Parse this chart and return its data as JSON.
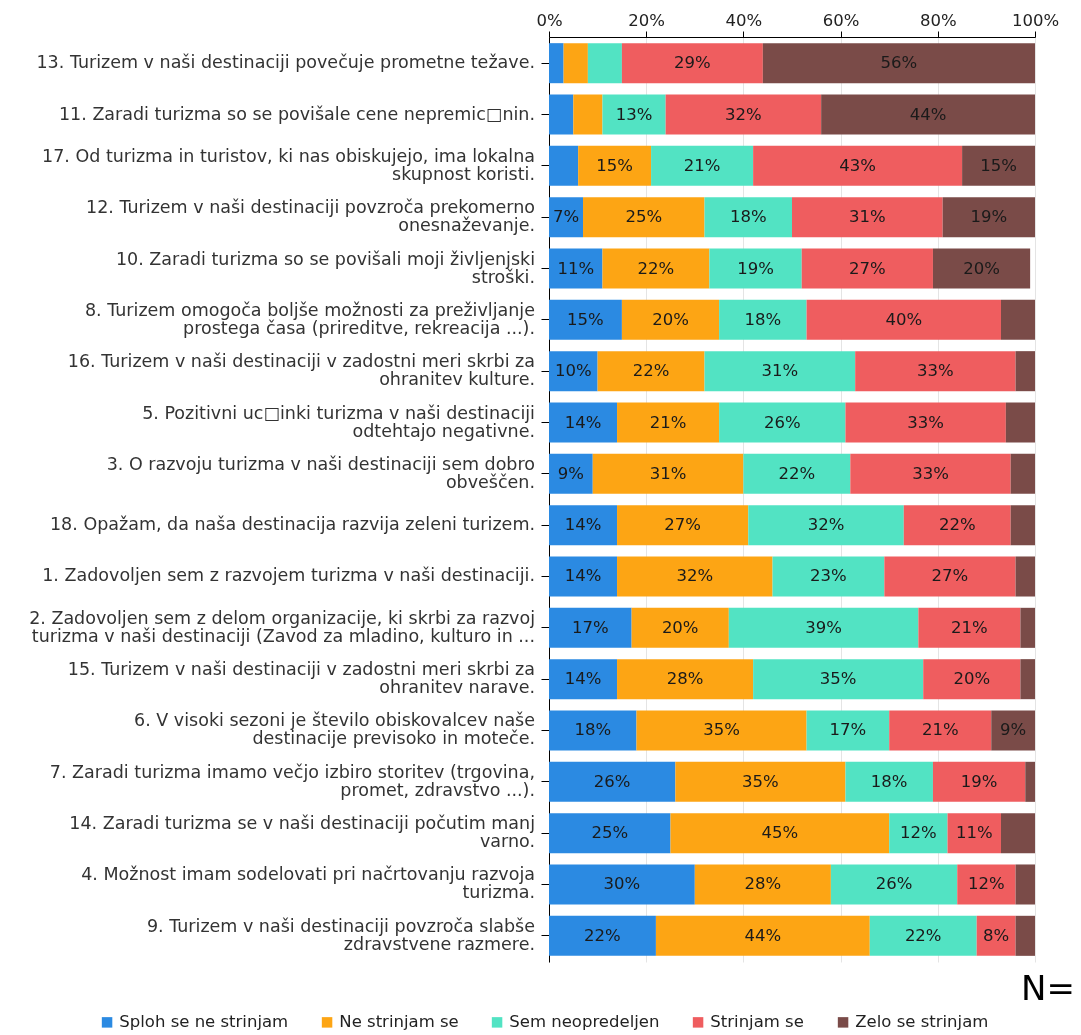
{
  "chart_data": {
    "type": "bar",
    "orientation": "horizontal",
    "stacked": true,
    "categories": [
      "13. Turizem v naši destinaciji povečuje prometne težave.",
      "11. Zaradi turizma so se povišale cene nepremic□nin.",
      "17. Od turizma in turistov, ki nas obiskujejo, ima lokalna\nskupnost koristi.",
      "12. Turizem v naši destinaciji povzroča prekomerno\nonesnaževanje.",
      "10. Zaradi turizma so se povišali moji življenjski\nstroški.",
      "8. Turizem omogoča boljše možnosti za preživljanje\nprostega časa (prireditve, rekreacija ...).",
      "16. Turizem v naši destinaciji v zadostni meri skrbi za\nohranitev kulture.",
      "5. Pozitivni uc□inki turizma v naši destinaciji\nodtehtajo negativne.",
      "3. O razvoju turizma v naši destinaciji sem dobro\nobveščen.",
      "18. Opažam, da naša destinacija razvija zeleni turizem.",
      "1. Zadovoljen sem z razvojem turizma v naši destinaciji.",
      "2. Zadovoljen sem z delom organizacije, ki skrbi za razvoj\nturizma v naši destinaciji (Zavod za mladino, kulturo in ...",
      "15. Turizem v naši destinaciji v zadostni meri skrbi za\nohranitev narave.",
      "6. V visoki sezoni je število obiskovalcev naše\ndestinacije previsoko in moteče.",
      "7. Zaradi turizma imamo večjo izbiro storitev (trgovina,\npromet, zdravstvo ...).",
      "14. Zaradi turizma se v naši destinaciji počutim manj\nvarno.",
      "4. Možnost imam sodelovati pri načrtovanju razvoja\nturizma.",
      "9. Turizem v naši destinaciji povzroča slabše\nzdravstvene razmere."
    ],
    "series": [
      {
        "name": "Sploh se ne strinjam",
        "color": "#2b8ae2",
        "values": [
          3,
          5,
          6,
          7,
          11,
          15,
          10,
          14,
          9,
          14,
          14,
          17,
          14,
          18,
          26,
          25,
          30,
          22
        ],
        "value_labels": [
          null,
          null,
          null,
          "7%",
          "11%",
          "15%",
          "10%",
          "14%",
          "9%",
          "14%",
          "14%",
          "17%",
          "14%",
          "18%",
          "26%",
          "25%",
          "30%",
          "22%"
        ]
      },
      {
        "name": "Ne strinjam se",
        "color": "#fda514",
        "values": [
          5,
          6,
          15,
          25,
          22,
          20,
          22,
          21,
          31,
          27,
          32,
          20,
          28,
          35,
          35,
          45,
          28,
          44
        ],
        "value_labels": [
          null,
          null,
          "15%",
          "25%",
          "22%",
          "20%",
          "22%",
          "21%",
          "31%",
          "27%",
          "32%",
          "20%",
          "28%",
          "35%",
          "35%",
          "45%",
          "28%",
          "44%"
        ]
      },
      {
        "name": "Sem neopredeljen",
        "color": "#52e3c3",
        "values": [
          7,
          13,
          21,
          18,
          19,
          18,
          31,
          26,
          22,
          32,
          23,
          39,
          35,
          17,
          18,
          12,
          26,
          22
        ],
        "value_labels": [
          null,
          "13%",
          "21%",
          "18%",
          "19%",
          "18%",
          "31%",
          "26%",
          "22%",
          "32%",
          "23%",
          "39%",
          "35%",
          "17%",
          "18%",
          "12%",
          "26%",
          "22%"
        ]
      },
      {
        "name": "Strinjam se",
        "color": "#ef5d5f",
        "values": [
          29,
          32,
          43,
          31,
          27,
          40,
          33,
          33,
          33,
          22,
          27,
          21,
          20,
          21,
          19,
          11,
          12,
          8
        ],
        "value_labels": [
          "29%",
          "32%",
          "43%",
          "31%",
          "27%",
          "40%",
          "33%",
          "33%",
          "33%",
          "22%",
          "27%",
          "21%",
          "20%",
          "21%",
          "19%",
          "11%",
          "12%",
          "8%"
        ]
      },
      {
        "name": "Zelo se strinjam",
        "color": "#7a4b48",
        "values": [
          56,
          44,
          15,
          19,
          20,
          7,
          4,
          6,
          5,
          5,
          4,
          3,
          3,
          9,
          2,
          7,
          4,
          4
        ],
        "value_labels": [
          "56%",
          "44%",
          "15%",
          "19%",
          "20%",
          null,
          null,
          null,
          null,
          null,
          null,
          null,
          null,
          "9%",
          null,
          null,
          null,
          null
        ]
      }
    ],
    "xlim": [
      0,
      100
    ],
    "xticks": [
      {
        "value": 0,
        "label": "0%"
      },
      {
        "value": 20,
        "label": "20%"
      },
      {
        "value": 40,
        "label": "40%"
      },
      {
        "value": 60,
        "label": "60%"
      },
      {
        "value": 80,
        "label": "80%"
      },
      {
        "value": 100,
        "label": "100%"
      }
    ],
    "grid": "x",
    "legend": "bottom",
    "annotations": [
      "N="
    ]
  }
}
